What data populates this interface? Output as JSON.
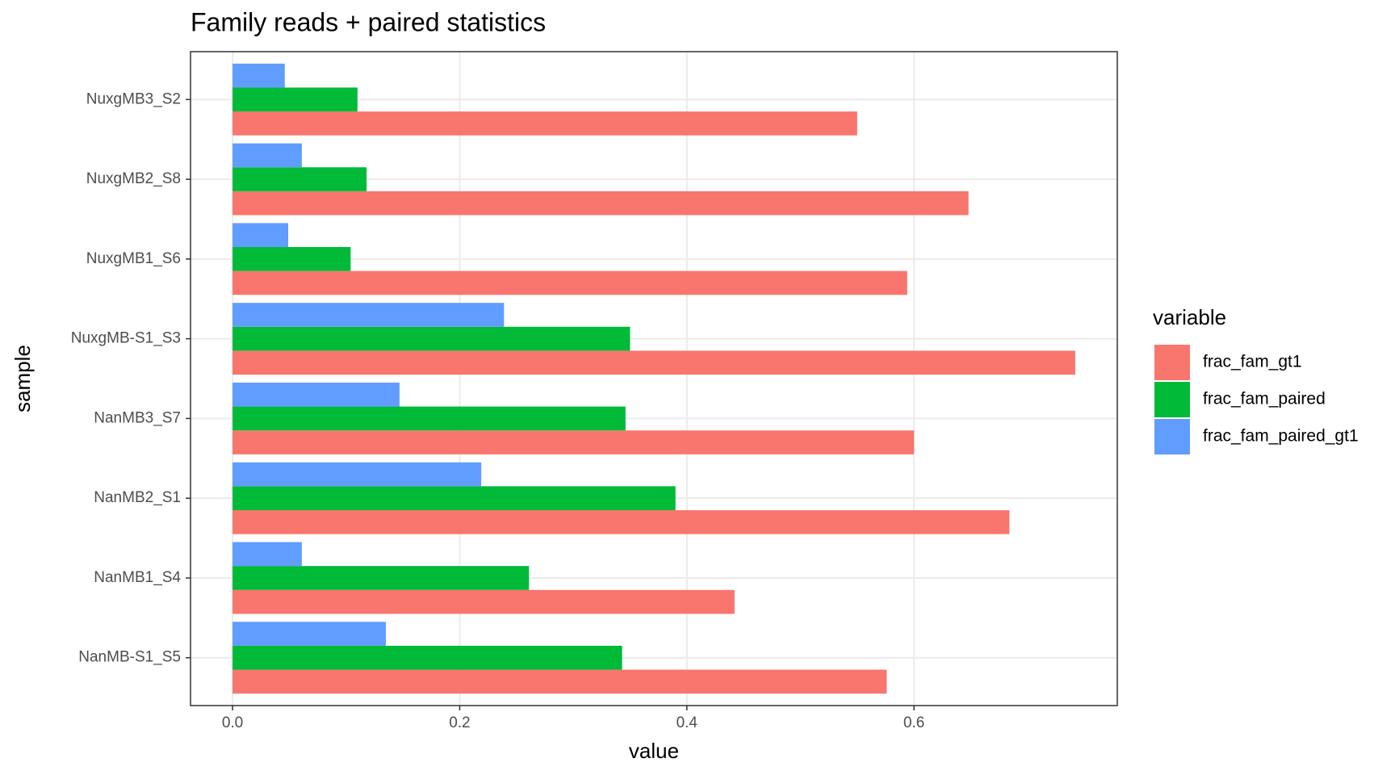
{
  "chart_data": {
    "type": "bar",
    "orientation": "horizontal",
    "title": "Family reads + paired statistics",
    "xlabel": "value",
    "ylabel": "sample",
    "legend_title": "variable",
    "categories": [
      "NuxgMB3_S2",
      "NuxgMB2_S8",
      "NuxgMB1_S6",
      "NuxgMB-S1_S3",
      "NanMB3_S7",
      "NanMB2_S1",
      "NanMB1_S4",
      "NanMB-S1_S5"
    ],
    "series": [
      {
        "name": "frac_fam_gt1",
        "color": "#f8766d",
        "values": [
          0.55,
          0.648,
          0.594,
          0.742,
          0.6,
          0.684,
          0.442,
          0.576
        ]
      },
      {
        "name": "frac_fam_paired",
        "color": "#00ba38",
        "values": [
          0.11,
          0.118,
          0.104,
          0.35,
          0.346,
          0.39,
          0.261,
          0.343
        ]
      },
      {
        "name": "frac_fam_paired_gt1",
        "color": "#619cff",
        "values": [
          0.046,
          0.061,
          0.049,
          0.239,
          0.147,
          0.219,
          0.061,
          0.135
        ]
      }
    ],
    "xlim": [
      -0.037,
      0.779
    ],
    "xticks": [
      {
        "value": 0,
        "label": "0.0"
      },
      0.2,
      0.4,
      0.6
    ],
    "grid": true
  }
}
